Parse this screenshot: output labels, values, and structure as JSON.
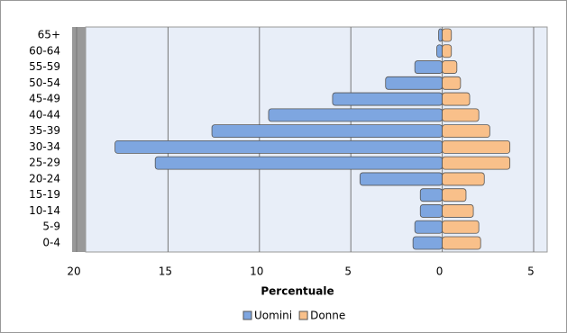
{
  "chart_data": {
    "type": "bar",
    "orientation": "horizontal",
    "x_label": "Percentuale",
    "categories": [
      "0-4",
      "5-9",
      "10-14",
      "15-19",
      "20-24",
      "25-29",
      "30-34",
      "35-39",
      "40-44",
      "45-49",
      "50-54",
      "55-59",
      "60-64",
      "65+"
    ],
    "series": [
      {
        "name": "Uomini",
        "color": "#7ea6e0",
        "values": [
          -1.6,
          -1.5,
          -1.2,
          -1.2,
          -4.5,
          -15.7,
          -17.9,
          -12.6,
          -9.5,
          -6.0,
          -3.1,
          -1.5,
          -0.3,
          -0.2
        ]
      },
      {
        "name": "Donne",
        "color": "#f9c08a",
        "values": [
          2.1,
          2.0,
          1.7,
          1.3,
          2.3,
          3.7,
          3.7,
          2.6,
          2.0,
          1.5,
          1.0,
          0.8,
          0.5,
          0.5
        ]
      }
    ],
    "xlim": [
      -20,
      5
    ],
    "xticks": [
      {
        "value": -20,
        "label": "20"
      },
      {
        "value": -15,
        "label": "15"
      },
      {
        "value": -10,
        "label": "10"
      },
      {
        "value": -5,
        "label": "5"
      },
      0,
      5
    ],
    "grid": true,
    "legend": "bottom"
  }
}
